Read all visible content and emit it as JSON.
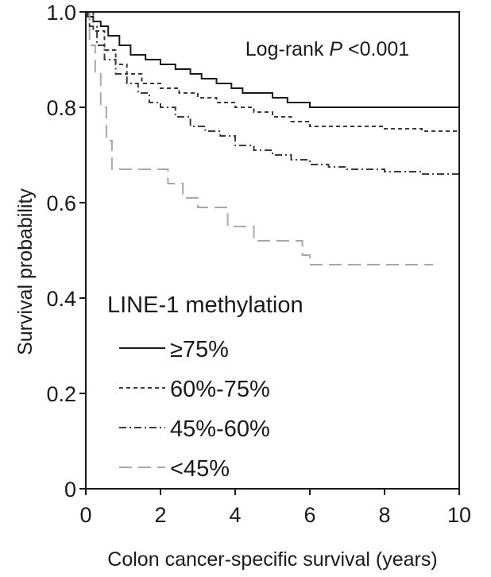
{
  "chart_data": {
    "type": "line",
    "xlabel": "Colon cancer-specific survival (years)",
    "ylabel": "Survival probability",
    "xlim": [
      0,
      10
    ],
    "ylim": [
      0,
      1.0
    ],
    "x_ticks": [
      0,
      2,
      4,
      6,
      8,
      10
    ],
    "y_ticks": [
      0,
      0.2,
      0.4,
      0.6,
      0.8,
      1.0
    ],
    "x_tick_labels": [
      "0",
      "2",
      "4",
      "6",
      "8",
      "10"
    ],
    "y_tick_labels": [
      "0",
      "0.2",
      "0.4",
      "0.6",
      "0.8",
      "1.0"
    ],
    "grid": false,
    "step": true,
    "annotation": {
      "prefix": "Log-rank ",
      "p": "P",
      "suffix": " <0.001"
    },
    "legend": {
      "title": "LINE-1 methylation",
      "placement": "lower-left"
    },
    "series": [
      {
        "name": "≥75%",
        "color": "#1a1a1a",
        "dash": "solid",
        "x": [
          0,
          0.05,
          0.2,
          0.4,
          0.6,
          0.9,
          1.2,
          1.6,
          2.0,
          2.4,
          2.8,
          3.1,
          3.5,
          3.9,
          4.2,
          4.6,
          5.0,
          5.4,
          5.8,
          6.0,
          10.0
        ],
        "y": [
          1.0,
          0.99,
          0.98,
          0.97,
          0.95,
          0.93,
          0.91,
          0.9,
          0.89,
          0.88,
          0.87,
          0.86,
          0.85,
          0.84,
          0.83,
          0.83,
          0.82,
          0.81,
          0.81,
          0.8,
          0.8
        ]
      },
      {
        "name": "60%-75%",
        "color": "#3a3a3a",
        "dash": "short",
        "x": [
          0,
          0.2,
          0.5,
          0.8,
          1.1,
          1.5,
          2.0,
          2.5,
          3.0,
          3.5,
          4.0,
          4.5,
          5.0,
          5.5,
          6.0,
          7.0,
          8.0,
          9.0,
          10.0
        ],
        "y": [
          1.0,
          0.96,
          0.92,
          0.89,
          0.87,
          0.85,
          0.84,
          0.83,
          0.82,
          0.81,
          0.8,
          0.79,
          0.78,
          0.77,
          0.76,
          0.76,
          0.755,
          0.75,
          0.75
        ]
      },
      {
        "name": "45%-60%",
        "color": "#3a3a3a",
        "dash": "dashdot",
        "x": [
          0,
          0.1,
          0.3,
          0.5,
          0.8,
          1.1,
          1.4,
          1.7,
          2.0,
          2.4,
          2.8,
          3.2,
          3.6,
          4.0,
          4.5,
          5.0,
          5.5,
          6.0,
          6.5,
          7.0,
          8.0,
          9.0,
          10.0
        ],
        "y": [
          1.0,
          0.97,
          0.93,
          0.9,
          0.87,
          0.85,
          0.83,
          0.81,
          0.8,
          0.78,
          0.76,
          0.75,
          0.74,
          0.72,
          0.71,
          0.7,
          0.69,
          0.68,
          0.675,
          0.67,
          0.665,
          0.66,
          0.65
        ]
      },
      {
        "name": "<45%",
        "color": "#a8a8a8",
        "dash": "long",
        "x": [
          0,
          0.1,
          0.25,
          0.4,
          0.55,
          0.7,
          2.2,
          2.6,
          3.0,
          3.8,
          4.5,
          5.8,
          6.0,
          9.3
        ],
        "y": [
          1.0,
          0.93,
          0.87,
          0.8,
          0.73,
          0.67,
          0.64,
          0.61,
          0.59,
          0.55,
          0.52,
          0.49,
          0.47,
          0.47
        ]
      }
    ]
  }
}
